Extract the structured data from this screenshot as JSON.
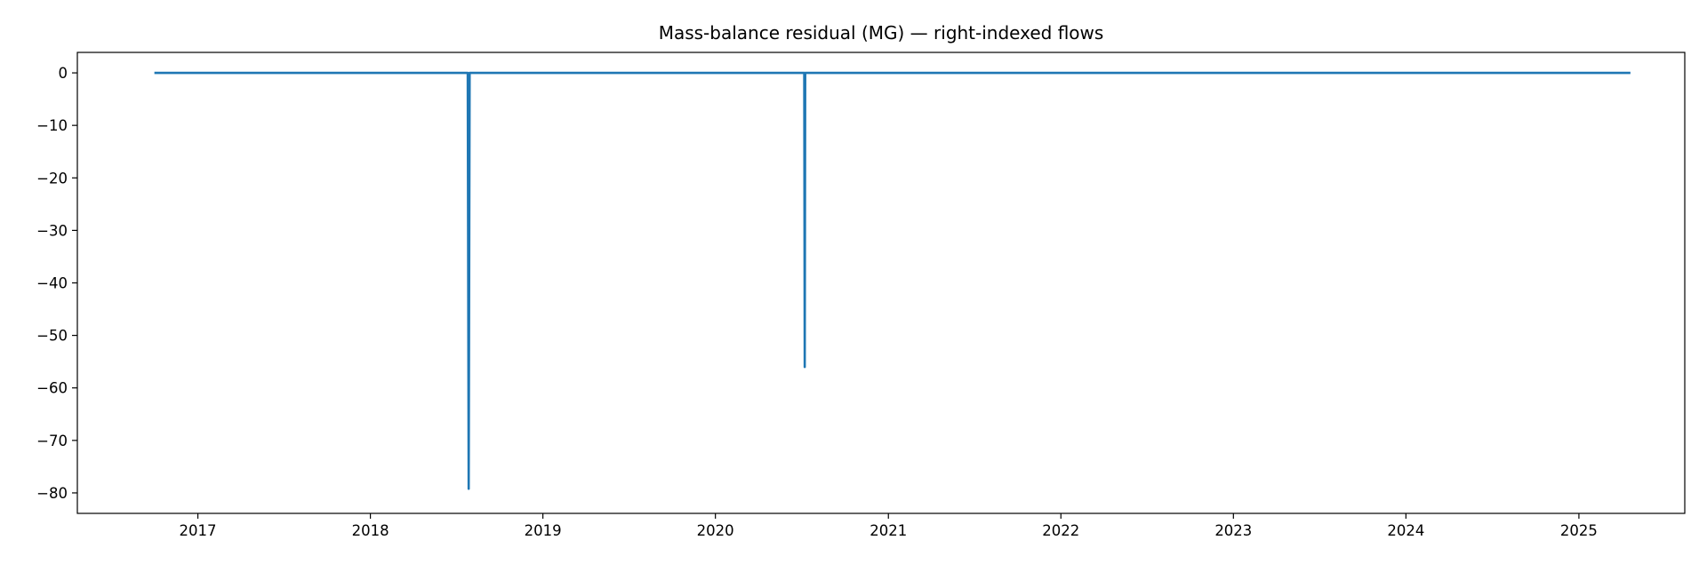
{
  "chart_data": {
    "type": "line",
    "title": "Mass-balance residual (MG) — right-indexed flows",
    "xlabel": "",
    "ylabel": "",
    "x_scale": "time",
    "x_range": [
      "2016-04-21",
      "2025-08-13"
    ],
    "ylim": [
      -83.9,
      3.9
    ],
    "grid": false,
    "legend": "none",
    "x_ticks": [
      "2017",
      "2018",
      "2019",
      "2020",
      "2021",
      "2022",
      "2023",
      "2024",
      "2025"
    ],
    "y_ticks": [
      0,
      -10,
      -20,
      -30,
      -40,
      -50,
      -60,
      -70,
      -80
    ],
    "series": [
      {
        "color": "#1f77b4",
        "points": [
          {
            "x": "2016-10-01",
            "y": 0
          },
          {
            "x": "2018-07-26",
            "y": 0
          },
          {
            "x": "2018-07-28",
            "y": -79.2
          },
          {
            "x": "2018-07-30",
            "y": 0
          },
          {
            "x": "2020-07-07",
            "y": 0
          },
          {
            "x": "2020-07-08",
            "y": -56
          },
          {
            "x": "2020-07-09",
            "y": 0
          },
          {
            "x": "2025-04-20",
            "y": 0
          }
        ]
      }
    ]
  }
}
